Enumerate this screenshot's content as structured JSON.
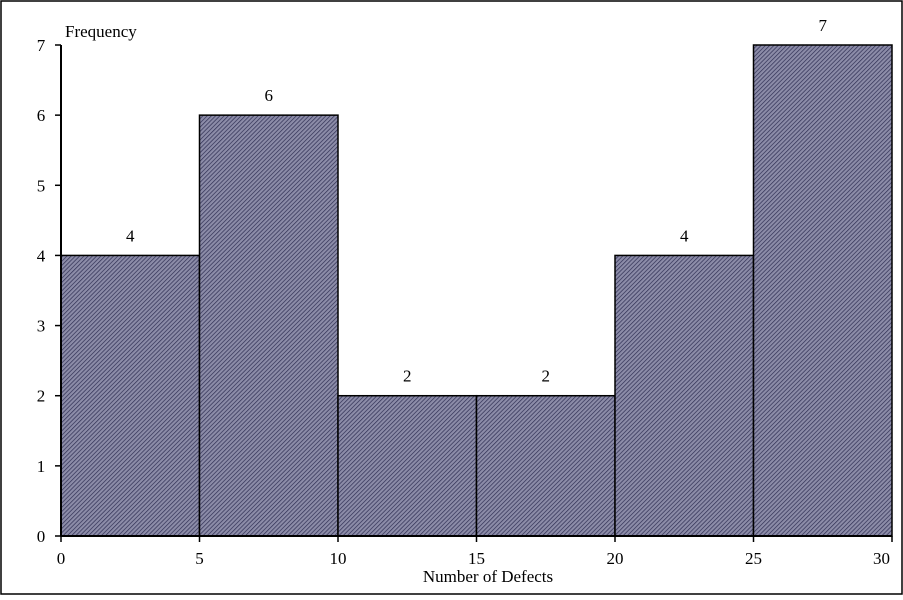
{
  "chart_data": {
    "type": "bar",
    "bin_edges": [
      0,
      5,
      10,
      15,
      20,
      25,
      30
    ],
    "values": [
      4,
      6,
      2,
      2,
      4,
      7
    ],
    "data_labels": [
      "4",
      "6",
      "2",
      "2",
      "4",
      "7"
    ],
    "xlabel": "Number of Defects",
    "ylabel": "Frequency",
    "xlim": [
      0,
      30
    ],
    "ylim": [
      0,
      7
    ],
    "x_ticks": [
      "0",
      "5",
      "10",
      "15",
      "20",
      "25",
      "30"
    ],
    "y_ticks": [
      "0",
      "1",
      "2",
      "3",
      "4",
      "5",
      "6",
      "7"
    ],
    "grid": false,
    "bar_fill": "#8c8ca8",
    "bar_hatch": "#2e2e52",
    "bar_edge": "#000000"
  }
}
